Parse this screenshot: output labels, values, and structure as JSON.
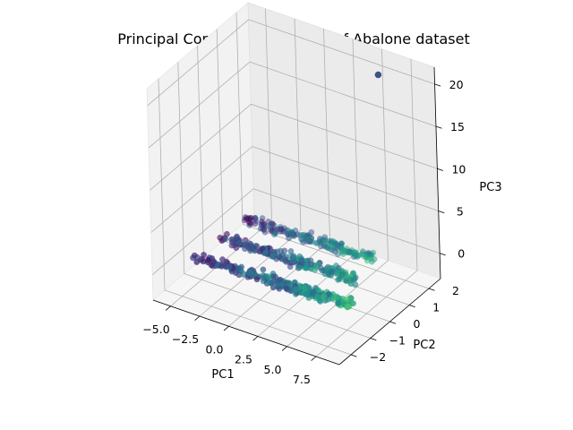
{
  "chart_data": {
    "type": "scatter",
    "projection": "3d",
    "title": "Principal Component Analysis of Abalone dataset",
    "xlabel": "PC1",
    "ylabel": "PC2",
    "zlabel": "PC3",
    "xlim": [
      -6.5,
      9.5
    ],
    "ylim": [
      -2.6,
      2.6
    ],
    "zlim": [
      -3,
      22
    ],
    "xticks": [
      -5.0,
      -2.5,
      0.0,
      2.5,
      5.0,
      7.5
    ],
    "yticks": [
      -2,
      -1,
      0,
      1,
      2
    ],
    "zticks": [
      0,
      5,
      10,
      15,
      20
    ],
    "xtick_labels": [
      "−5.0",
      "−2.5",
      "0.0",
      "2.5",
      "5.0",
      "7.5"
    ],
    "ytick_labels": [
      "−2",
      "−1",
      "0",
      "1",
      "2"
    ],
    "ztick_labels": [
      "0",
      "5",
      "10",
      "15",
      "20"
    ],
    "grid": true,
    "colormap": "viridis",
    "clusters": [
      {
        "pc2": -1.0,
        "pc1_range": [
          -5.8,
          8.0
        ],
        "pc3_center": -0.5,
        "count": 230
      },
      {
        "pc2": 0.0,
        "pc1_range": [
          -5.2,
          6.8
        ],
        "pc3_center": 0.0,
        "count": 200
      },
      {
        "pc2": 1.0,
        "pc1_range": [
          -4.8,
          6.5
        ],
        "pc3_center": 0.5,
        "count": 180
      }
    ],
    "outlier": {
      "pc1": 6.0,
      "pc2": 1.8,
      "pc3": 21.0
    }
  }
}
